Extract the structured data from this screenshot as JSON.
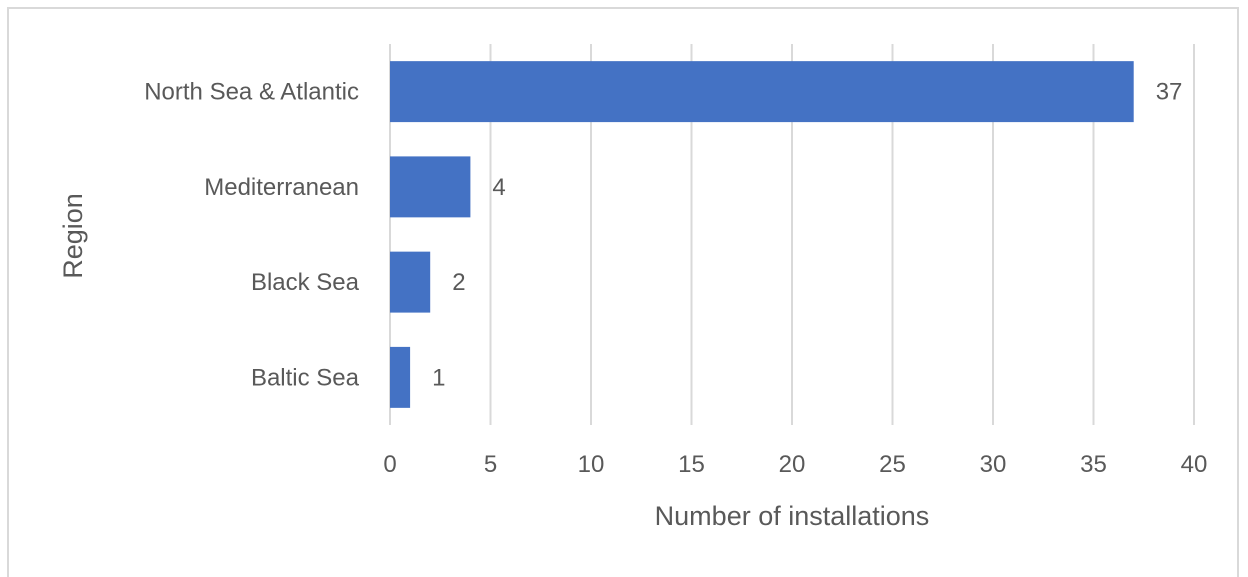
{
  "chart_data": {
    "type": "bar",
    "orientation": "horizontal",
    "categories": [
      "North Sea & Atlantic",
      "Mediterranean",
      "Black Sea",
      "Baltic Sea"
    ],
    "values": [
      37,
      4,
      2,
      1
    ],
    "data_labels": [
      "37",
      "4",
      "2",
      "1"
    ],
    "title": "",
    "xlabel": "Number of installations",
    "ylabel": "Region",
    "xlim": [
      0,
      40
    ],
    "x_ticks": [
      0,
      5,
      10,
      15,
      20,
      25,
      30,
      35,
      40
    ],
    "x_tick_labels": [
      "0",
      "5",
      "10",
      "15",
      "20",
      "25",
      "30",
      "35",
      "40"
    ],
    "grid": "vertical",
    "legend": "none",
    "bar_color": "#4472c4",
    "grid_color": "#d9d9d9",
    "text_color": "#595959"
  }
}
